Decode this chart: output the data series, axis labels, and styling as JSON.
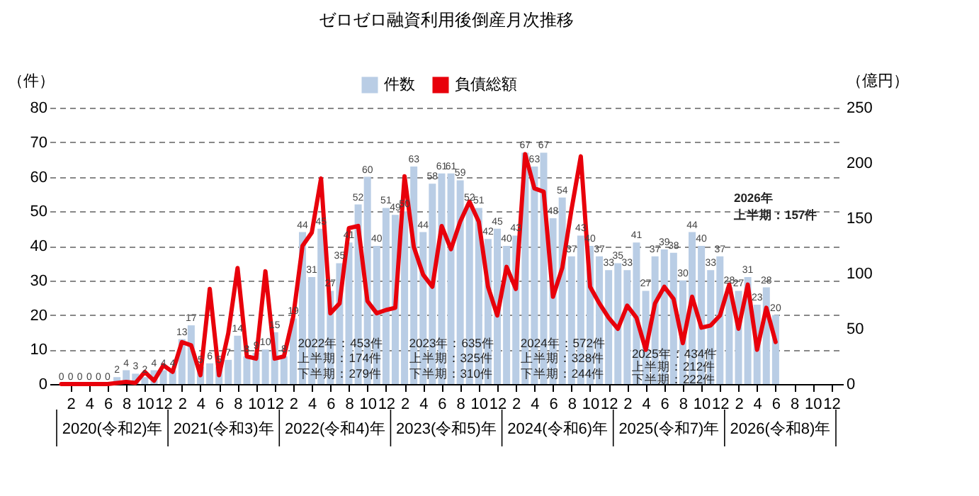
{
  "chart_data": {
    "type": "bar",
    "title": "ゼロゼロ融資利用後倒産月次推移",
    "ylabel": "（件）",
    "y2label": "（億円）",
    "categories": [
      null,
      "2",
      null,
      "4",
      null,
      "6",
      null,
      "8",
      null,
      "10",
      null,
      "12",
      null,
      "2",
      null,
      "4",
      null,
      "6",
      null,
      "8",
      null,
      "10",
      null,
      "12",
      null,
      "2",
      null,
      "4",
      null,
      "6",
      null,
      "8",
      null,
      "10",
      null,
      "12",
      null,
      "2",
      null,
      "4",
      null,
      "6",
      null,
      "8",
      null,
      "10",
      null,
      "12",
      null,
      "2",
      null,
      "4",
      null,
      "6",
      null,
      "8",
      null,
      "10",
      null,
      "12",
      null,
      "2",
      null,
      "4",
      null,
      "6",
      null,
      "8",
      null,
      "10",
      null,
      "12",
      null,
      "2",
      null,
      "4",
      null,
      "6",
      null,
      "8",
      null,
      "10",
      null,
      "12"
    ],
    "series": [
      {
        "name": "件数",
        "color": "#b9cde5",
        "values": [
          0,
          0,
          0,
          0,
          0,
          0,
          2,
          4,
          3,
          2,
          4,
          4,
          4,
          13,
          17,
          5,
          6,
          5,
          7,
          14,
          8,
          9,
          10,
          15,
          8,
          19,
          44,
          31,
          45,
          27,
          35,
          41,
          52,
          60,
          40,
          51,
          49,
          50,
          63,
          44,
          58,
          61,
          61,
          59,
          52,
          51,
          42,
          45,
          40,
          43,
          67,
          63,
          67,
          48,
          54,
          37,
          43,
          40,
          37,
          33,
          35,
          33,
          41,
          27,
          37,
          39,
          38,
          30,
          44,
          40,
          33,
          37,
          28,
          27,
          31,
          23,
          28,
          20,
          null,
          null,
          null,
          null,
          null,
          null
        ],
        "value_labels": [
          "0",
          "0",
          "0",
          "0",
          "0",
          "0",
          "2",
          "4",
          "3",
          "2",
          "4",
          "4",
          "4",
          "13",
          "17",
          "5",
          "6",
          "5",
          "7",
          "14",
          "8",
          "9",
          "10",
          "15",
          "8",
          "19",
          "44",
          "31",
          "45",
          "27",
          "35",
          "41",
          "52",
          "60",
          "40",
          "51",
          "49",
          "50",
          "63",
          "44",
          "58",
          "61",
          "61",
          "59",
          "52",
          "51",
          "42",
          "45",
          "40",
          "43",
          "67",
          "63",
          "67",
          "48",
          "54",
          "37",
          "43",
          "40",
          "37",
          "33",
          "35",
          "33",
          "41",
          "27",
          "37",
          "39",
          "38",
          "30",
          "44",
          "40",
          "33",
          "37",
          "28",
          "27",
          "31",
          "23",
          "28",
          "20",
          null,
          null,
          null,
          null,
          null,
          null
        ]
      },
      {
        "name": "負債総額",
        "type": "line",
        "axis": "y2",
        "color": "#e8000b",
        "values": [
          0,
          0,
          0,
          0,
          0,
          0,
          1,
          2,
          1,
          11,
          3,
          17,
          11,
          38,
          35,
          8,
          86,
          8,
          46,
          105,
          25,
          23,
          102,
          23,
          25,
          61,
          125,
          137,
          186,
          64,
          73,
          141,
          143,
          75,
          64,
          67,
          69,
          188,
          124,
          99,
          88,
          143,
          122,
          147,
          165,
          147,
          88,
          62,
          106,
          86,
          208,
          177,
          174,
          79,
          105,
          158,
          206,
          88,
          73,
          60,
          50,
          71,
          60,
          31,
          73,
          88,
          77,
          37,
          79,
          51,
          53,
          62,
          90,
          50,
          90,
          31,
          69,
          38,
          null,
          null,
          null,
          null,
          null,
          null
        ]
      }
    ],
    "ylim": [
      0,
      80
    ],
    "yticks": [
      0,
      10,
      20,
      30,
      40,
      50,
      60,
      70,
      80
    ],
    "y2lim": [
      0,
      250
    ],
    "y2ticks": [
      0,
      50,
      100,
      150,
      200,
      250
    ],
    "grid": "y",
    "legend": "top",
    "marker": "none",
    "line_style": "solid",
    "annotations": [
      "2020(令和2)年",
      "2021(令和3)年",
      "2022(令和4)年",
      "2023(令和5)年",
      "2024(令和6)年",
      "2025(令和7)年",
      "2026(令和8)年",
      "2022年：453件",
      "上半期：174件",
      "下半期：279件",
      "2023年：635件",
      "上半期：325件",
      "下半期：310件",
      "2024年：572件",
      "上半期：328件",
      "下半期：244件",
      "2025年：434件",
      "上半期：212件",
      "下半期：222件",
      "2026年",
      "上半期：157件"
    ]
  }
}
